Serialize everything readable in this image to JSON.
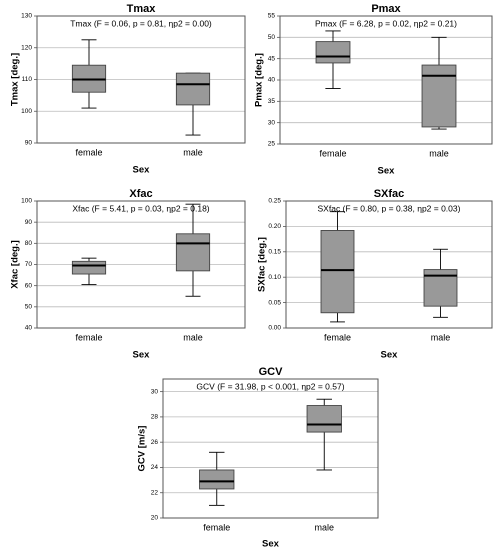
{
  "chart_data": [
    {
      "type": "box",
      "title": "Tmax",
      "annotation": "Tmax (F = 0.06, p = 0.81, ηp2 = 0.00)",
      "xlabel": "Sex",
      "ylabel": "Tmax [deg.]",
      "ylim": [
        90,
        130
      ],
      "yticks": [
        90,
        100,
        110,
        120,
        130
      ],
      "grid": true,
      "categories": [
        "female",
        "male"
      ],
      "boxes": [
        {
          "min": 101,
          "q1": 106,
          "median": 110,
          "q3": 114.5,
          "max": 122.5
        },
        {
          "min": 92.5,
          "q1": 102,
          "median": 108.5,
          "q3": 112,
          "max": 112
        }
      ]
    },
    {
      "type": "box",
      "title": "Pmax",
      "annotation": "Pmax (F = 6.28, p = 0.02, ηp2 = 0.21)",
      "xlabel": "Sex",
      "ylabel": "Pmax [deg.]",
      "ylim": [
        25,
        55
      ],
      "yticks": [
        25,
        30,
        35,
        40,
        45,
        50,
        55
      ],
      "grid": true,
      "categories": [
        "female",
        "male"
      ],
      "boxes": [
        {
          "min": 38,
          "q1": 44,
          "median": 45.5,
          "q3": 49,
          "max": 51.5
        },
        {
          "min": 28.5,
          "q1": 29,
          "median": 41,
          "q3": 43.5,
          "max": 50
        }
      ]
    },
    {
      "type": "box",
      "title": "Xfac",
      "annotation": "Xfac (F = 5.41, p = 0.03, ηp2 = 0.18)",
      "xlabel": "Sex",
      "ylabel": "Xfac [deg.]",
      "ylim": [
        40,
        100
      ],
      "yticks": [
        40,
        50,
        60,
        70,
        80,
        90,
        100
      ],
      "grid": true,
      "categories": [
        "female",
        "male"
      ],
      "boxes": [
        {
          "min": 60.5,
          "q1": 65.5,
          "median": 69.5,
          "q3": 71.5,
          "max": 73
        },
        {
          "min": 55,
          "q1": 67,
          "median": 80,
          "q3": 84.5,
          "max": 98.5
        }
      ]
    },
    {
      "type": "box",
      "title": "SXfac",
      "annotation": "SXfac (F = 0.80, p = 0.38, ηp2 = 0.03)",
      "xlabel": "Sex",
      "ylabel": "SXfac [deg.]",
      "ylim": [
        0,
        0.25
      ],
      "yticks": [
        "0.00",
        "0.05",
        "0.10",
        "0.15",
        "0.20",
        "0.25"
      ],
      "grid": true,
      "categories": [
        "female",
        "male"
      ],
      "boxes": [
        {
          "min": 0.012,
          "q1": 0.03,
          "median": 0.114,
          "q3": 0.192,
          "max": 0.229
        },
        {
          "min": 0.021,
          "q1": 0.043,
          "median": 0.103,
          "q3": 0.115,
          "max": 0.155
        }
      ]
    },
    {
      "type": "box",
      "title": "GCV",
      "annotation": "GCV (F = 31.98, p < 0.001, ηp2 = 0.57)",
      "xlabel": "Sex",
      "ylabel": "GCV [m/s]",
      "ylim": [
        20,
        31
      ],
      "yticks": [
        20,
        22,
        24,
        26,
        28,
        30
      ],
      "grid": true,
      "categories": [
        "female",
        "male"
      ],
      "boxes": [
        {
          "min": 21,
          "q1": 22.3,
          "median": 22.9,
          "q3": 23.8,
          "max": 25.2
        },
        {
          "min": 23.8,
          "q1": 26.8,
          "median": 27.4,
          "q3": 28.9,
          "max": 29.4
        }
      ]
    }
  ],
  "colors": {
    "box_fill": "#999999",
    "box_stroke": "#444444",
    "median": "#000000",
    "grid": "#bbbbbb",
    "frame": "#555555"
  }
}
